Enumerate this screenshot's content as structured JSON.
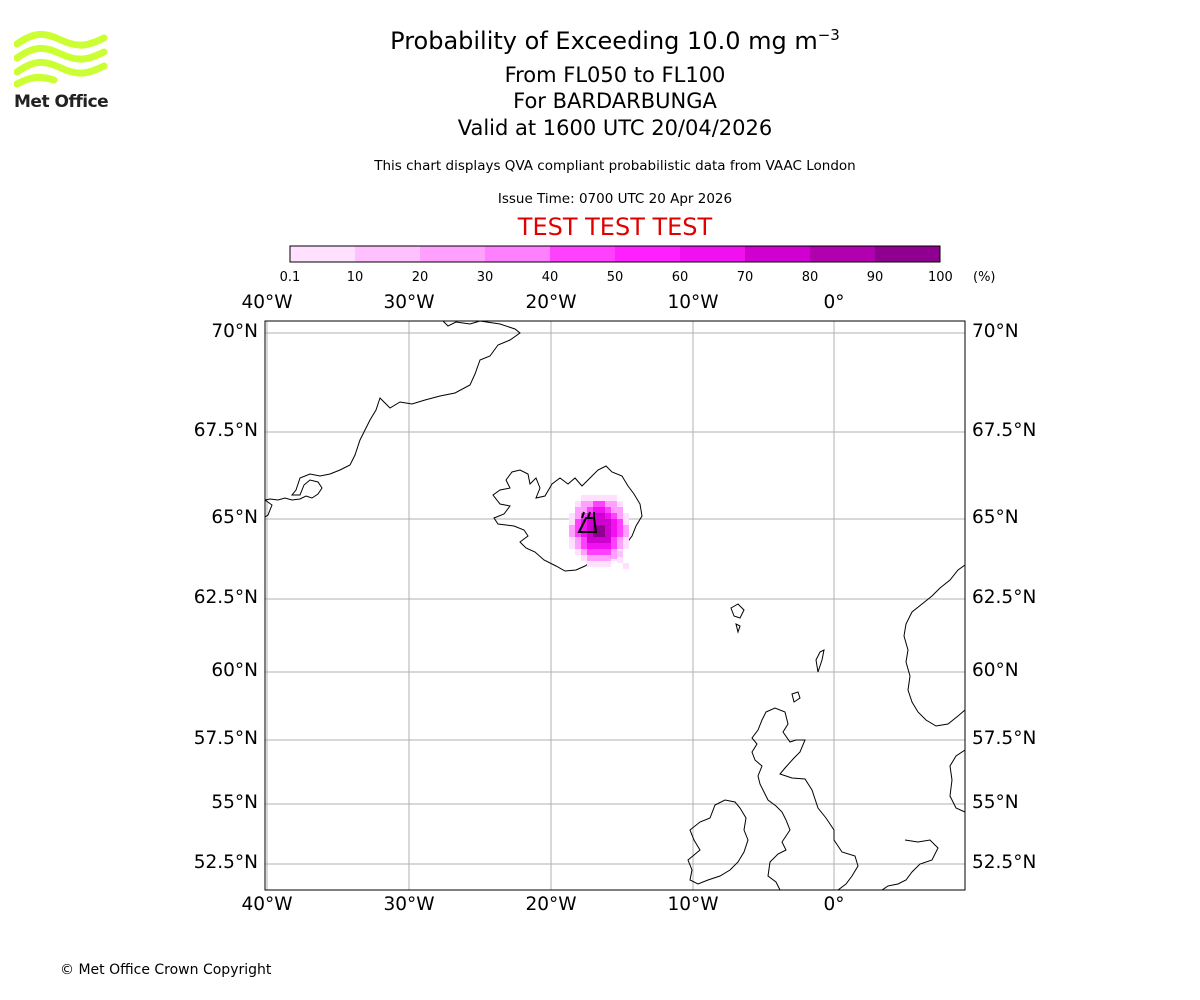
{
  "header": {
    "title_prefix": "Probability of Exceeding 10.0 mg m",
    "title_exponent": "−3",
    "level_range": "From FL050 to FL100",
    "volcano": "For BARDARBUNGA",
    "valid_time": "Valid at 1600 UTC 20/04/2026",
    "note": "This chart displays QVA compliant probabilistic data from VAAC London",
    "issue_time": "Issue Time: 0700 UTC 20 Apr 2026",
    "test_banner": "TEST TEST TEST"
  },
  "logo": {
    "text": "Met Office",
    "color": "#ccff33"
  },
  "footer": {
    "copyright": "© Met Office Crown Copyright"
  },
  "colorbar": {
    "ticks": [
      "0.1",
      "10",
      "20",
      "30",
      "40",
      "50",
      "60",
      "70",
      "80",
      "90",
      "100"
    ],
    "unit": "(%)",
    "colors": [
      "#ffe0ff",
      "#ffc0ff",
      "#ffa0ff",
      "#ff80ff",
      "#ff40ff",
      "#ff20ff",
      "#f010f0",
      "#d000d0",
      "#b000b0",
      "#900090",
      "#600060"
    ]
  },
  "map": {
    "lon_labels": [
      "40°W",
      "30°W",
      "20°W",
      "10°W",
      "0°"
    ],
    "lat_labels": [
      "70°N",
      "67.5°N",
      "65°N",
      "62.5°N",
      "60°N",
      "57.5°N",
      "55°N",
      "52.5°N"
    ],
    "volcano_marker": "Bardarbunga"
  }
}
